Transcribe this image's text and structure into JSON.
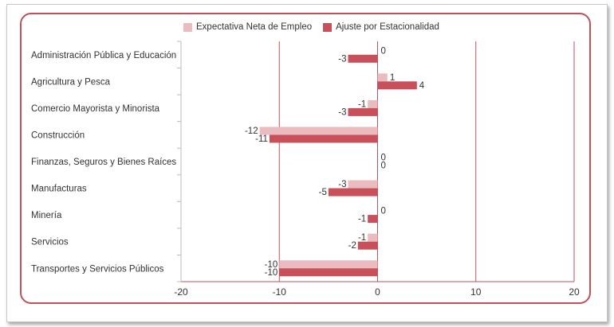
{
  "chart_data": {
    "type": "bar",
    "orientation": "horizontal",
    "title": "",
    "xlabel": "",
    "ylabel": "",
    "xlim": [
      -20,
      20
    ],
    "xticks": [
      -20,
      -10,
      0,
      10,
      20
    ],
    "grid": true,
    "legend_position": "top",
    "categories": [
      "Administración Pública y Educación",
      "Agricultura y Pesca",
      "Comercio Mayorista y Minorista",
      "Construcción",
      "Finanzas, Seguros y Bienes Raíces",
      "Manufacturas",
      "Minería",
      "Servicios",
      "Transportes y Servicios Públicos"
    ],
    "series": [
      {
        "name": "Expectativa Neta de Empleo",
        "color": "#ebbcbf",
        "values": [
          0,
          1,
          -1,
          -12,
          0,
          -3,
          0,
          -1,
          -10
        ]
      },
      {
        "name": "Ajuste por Estacionalidad",
        "color": "#c8505a",
        "values": [
          -3,
          4,
          -3,
          -11,
          0,
          -5,
          -1,
          -2,
          -10
        ]
      }
    ]
  },
  "colors": {
    "gridline": "#c0505a",
    "frame": "#c0505a",
    "axis_text": "#333333"
  }
}
